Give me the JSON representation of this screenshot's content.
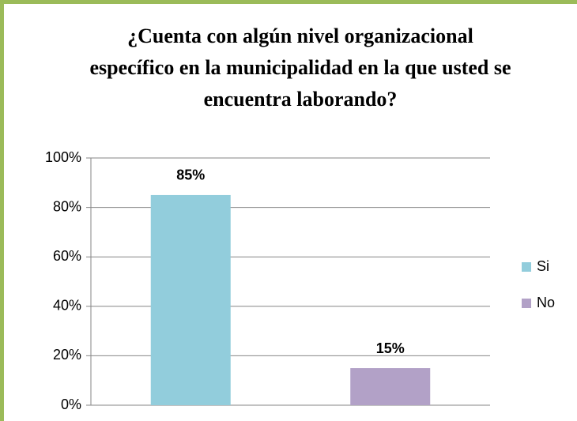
{
  "chart_data": {
    "type": "bar",
    "title": "¿Cuenta con algún nivel organizacional específico en la municipalidad en la que usted se encuentra laborando?",
    "categories": [
      null
    ],
    "series": [
      {
        "name": "Si",
        "color": "#92cddc",
        "values": [
          85
        ],
        "value_labels": [
          "85%"
        ]
      },
      {
        "name": "No",
        "color": "#b2a1c7",
        "values": [
          15
        ],
        "value_labels": [
          "15%"
        ]
      }
    ],
    "ylim": [
      0,
      100
    ],
    "yticks": [
      {
        "value": 0,
        "label": "0%"
      },
      {
        "value": 20,
        "label": "20%"
      },
      {
        "value": 40,
        "label": "40%"
      },
      {
        "value": 60,
        "label": "60%"
      },
      {
        "value": 80,
        "label": "80%"
      },
      {
        "value": 100,
        "label": "100%"
      }
    ],
    "grid": true,
    "legend": "right"
  }
}
